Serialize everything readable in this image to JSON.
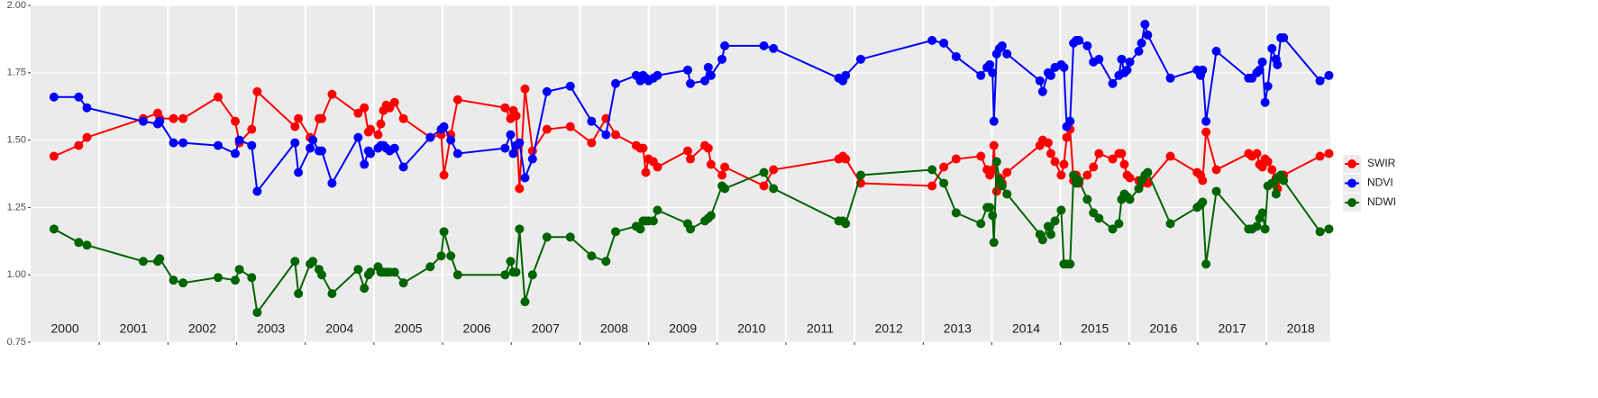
{
  "chart_data": {
    "type": "line",
    "x": [
      2000.34,
      2000.7,
      2000.82,
      2001.64,
      2001.85,
      2001.88,
      2002.08,
      2002.22,
      2002.73,
      2002.98,
      2003.04,
      2003.22,
      2003.3,
      2003.85,
      2003.9,
      2004.07,
      2004.11,
      2004.2,
      2004.24,
      2004.39,
      2004.77,
      2004.86,
      2004.92,
      2004.95,
      2005.06,
      2005.1,
      2005.14,
      2005.18,
      2005.23,
      2005.3,
      2005.43,
      2005.82,
      2005.98,
      2006.02,
      2006.12,
      2006.22,
      2006.91,
      2006.99,
      2007.03,
      2007.07,
      2007.12,
      2007.2,
      2007.31,
      2007.52,
      2007.86,
      2008.17,
      2008.38,
      2008.52,
      2008.82,
      2008.88,
      2008.92,
      2008.96,
      2009.0,
      2009.07,
      2009.13,
      2009.57,
      2009.61,
      2009.82,
      2009.87,
      2009.91,
      2010.07,
      2010.11,
      2010.68,
      2010.82,
      2011.77,
      2011.83,
      2011.87,
      2012.09,
      2013.13,
      2013.3,
      2013.48,
      2013.84,
      2013.93,
      2013.97,
      2014.01,
      2014.03,
      2014.07,
      2014.11,
      2014.15,
      2014.22,
      2014.7,
      2014.74,
      2014.82,
      2014.86,
      2014.92,
      2015.01,
      2015.05,
      2015.09,
      2015.14,
      2015.19,
      2015.23,
      2015.27,
      2015.39,
      2015.48,
      2015.56,
      2015.76,
      2015.85,
      2015.89,
      2015.93,
      2015.97,
      2016.01,
      2016.14,
      2016.18,
      2016.23,
      2016.27,
      2016.6,
      2016.99,
      2017.04,
      2017.07,
      2017.12,
      2017.27,
      2017.74,
      2017.79,
      2017.86,
      2017.9,
      2017.94,
      2017.98,
      2018.02,
      2018.08,
      2018.14,
      2018.16,
      2018.21,
      2018.25,
      2018.78,
      2018.91
    ],
    "series": [
      {
        "name": "SWIR",
        "color": "#ff0000",
        "values": [
          1.44,
          1.48,
          1.51,
          1.58,
          1.6,
          1.58,
          1.58,
          1.58,
          1.66,
          1.57,
          1.49,
          1.54,
          1.68,
          1.55,
          1.58,
          1.51,
          1.5,
          1.58,
          1.58,
          1.67,
          1.6,
          1.62,
          1.53,
          1.54,
          1.52,
          1.56,
          1.61,
          1.63,
          1.62,
          1.64,
          1.58,
          1.51,
          1.52,
          1.37,
          1.52,
          1.65,
          1.62,
          1.58,
          1.61,
          1.59,
          1.32,
          1.69,
          1.46,
          1.54,
          1.55,
          1.49,
          1.58,
          1.52,
          1.48,
          1.47,
          1.47,
          1.38,
          1.43,
          1.42,
          1.4,
          1.46,
          1.43,
          1.48,
          1.47,
          1.41,
          1.37,
          1.4,
          1.33,
          1.39,
          1.43,
          1.44,
          1.43,
          1.34,
          1.33,
          1.4,
          1.43,
          1.44,
          1.39,
          1.37,
          1.39,
          1.48,
          1.31,
          1.36,
          1.34,
          1.38,
          1.48,
          1.5,
          1.49,
          1.45,
          1.42,
          1.37,
          1.41,
          1.51,
          1.54,
          1.35,
          1.37,
          1.34,
          1.37,
          1.4,
          1.45,
          1.43,
          1.45,
          1.45,
          1.41,
          1.37,
          1.36,
          1.35,
          1.34,
          1.35,
          1.34,
          1.44,
          1.38,
          1.37,
          1.35,
          1.53,
          1.39,
          1.45,
          1.44,
          1.45,
          1.41,
          1.4,
          1.43,
          1.42,
          1.39,
          1.36,
          1.32,
          1.37,
          1.37,
          1.44,
          1.45
        ]
      },
      {
        "name": "NDVI",
        "color": "#0000ff",
        "values": [
          1.66,
          1.66,
          1.62,
          1.57,
          1.56,
          1.57,
          1.49,
          1.49,
          1.48,
          1.45,
          1.5,
          1.48,
          1.31,
          1.49,
          1.38,
          1.47,
          1.5,
          1.46,
          1.46,
          1.34,
          1.51,
          1.41,
          1.46,
          1.45,
          1.47,
          1.48,
          1.48,
          1.47,
          1.46,
          1.47,
          1.4,
          1.51,
          1.54,
          1.55,
          1.5,
          1.45,
          1.47,
          1.52,
          1.45,
          1.48,
          1.49,
          1.36,
          1.43,
          1.68,
          1.7,
          1.57,
          1.52,
          1.71,
          1.74,
          1.72,
          1.74,
          1.73,
          1.72,
          1.73,
          1.74,
          1.76,
          1.71,
          1.72,
          1.77,
          1.74,
          1.8,
          1.85,
          1.85,
          1.84,
          1.73,
          1.72,
          1.74,
          1.8,
          1.87,
          1.86,
          1.81,
          1.74,
          1.77,
          1.78,
          1.75,
          1.57,
          1.82,
          1.84,
          1.85,
          1.82,
          1.72,
          1.68,
          1.75,
          1.74,
          1.77,
          1.78,
          1.77,
          1.55,
          1.57,
          1.86,
          1.87,
          1.87,
          1.85,
          1.79,
          1.8,
          1.71,
          1.74,
          1.8,
          1.75,
          1.76,
          1.79,
          1.83,
          1.86,
          1.93,
          1.89,
          1.73,
          1.76,
          1.74,
          1.76,
          1.57,
          1.83,
          1.73,
          1.73,
          1.75,
          1.76,
          1.79,
          1.64,
          1.7,
          1.84,
          1.8,
          1.78,
          1.88,
          1.88,
          1.72,
          1.74
        ]
      },
      {
        "name": "NDWI",
        "color": "#006400",
        "values": [
          1.17,
          1.12,
          1.11,
          1.05,
          1.05,
          1.06,
          0.98,
          0.97,
          0.99,
          0.98,
          1.02,
          0.99,
          0.86,
          1.05,
          0.93,
          1.04,
          1.05,
          1.02,
          1.0,
          0.93,
          1.02,
          0.95,
          1.0,
          1.01,
          1.03,
          1.01,
          1.01,
          1.01,
          1.01,
          1.01,
          0.97,
          1.03,
          1.07,
          1.16,
          1.07,
          1.0,
          1.0,
          1.05,
          1.01,
          1.01,
          1.17,
          0.9,
          1.0,
          1.14,
          1.14,
          1.07,
          1.05,
          1.16,
          1.18,
          1.17,
          1.2,
          1.2,
          1.2,
          1.2,
          1.24,
          1.19,
          1.17,
          1.2,
          1.21,
          1.22,
          1.33,
          1.32,
          1.38,
          1.32,
          1.2,
          1.2,
          1.19,
          1.37,
          1.39,
          1.34,
          1.23,
          1.19,
          1.25,
          1.25,
          1.22,
          1.12,
          1.42,
          1.35,
          1.33,
          1.3,
          1.15,
          1.13,
          1.18,
          1.15,
          1.2,
          1.24,
          1.04,
          1.04,
          1.04,
          1.37,
          1.34,
          1.35,
          1.28,
          1.23,
          1.21,
          1.17,
          1.19,
          1.28,
          1.3,
          1.29,
          1.28,
          1.32,
          1.35,
          1.37,
          1.38,
          1.19,
          1.25,
          1.26,
          1.27,
          1.04,
          1.31,
          1.17,
          1.17,
          1.18,
          1.21,
          1.23,
          1.17,
          1.33,
          1.34,
          1.3,
          1.36,
          1.37,
          1.35,
          1.16,
          1.17
        ]
      }
    ],
    "xlim": [
      2000,
      2018.93
    ],
    "xticks": [
      {
        "value": 2000.5,
        "label": "2000"
      },
      {
        "value": 2001.5,
        "label": "2001"
      },
      {
        "value": 2002.5,
        "label": "2002"
      },
      {
        "value": 2003.5,
        "label": "2003"
      },
      {
        "value": 2004.5,
        "label": "2004"
      },
      {
        "value": 2005.5,
        "label": "2005"
      },
      {
        "value": 2006.5,
        "label": "2006"
      },
      {
        "value": 2007.5,
        "label": "2007"
      },
      {
        "value": 2008.5,
        "label": "2008"
      },
      {
        "value": 2009.5,
        "label": "2009"
      },
      {
        "value": 2010.5,
        "label": "2010"
      },
      {
        "value": 2011.5,
        "label": "2011"
      },
      {
        "value": 2012.5,
        "label": "2012"
      },
      {
        "value": 2013.5,
        "label": "2013"
      },
      {
        "value": 2014.5,
        "label": "2014"
      },
      {
        "value": 2015.5,
        "label": "2015"
      },
      {
        "value": 2016.5,
        "label": "2016"
      },
      {
        "value": 2017.5,
        "label": "2017"
      },
      {
        "value": 2018.5,
        "label": "2018"
      }
    ],
    "xgrid": [
      2001,
      2002,
      2003,
      2004,
      2005,
      2006,
      2007,
      2008,
      2009,
      2010,
      2011,
      2012,
      2013,
      2014,
      2015,
      2016,
      2017,
      2018
    ],
    "ylim": [
      0.75,
      2.0
    ],
    "yticks": [
      {
        "value": 0.75,
        "label": "0.75"
      },
      {
        "value": 1.0,
        "label": "1.00"
      },
      {
        "value": 1.25,
        "label": "1.25"
      },
      {
        "value": 1.5,
        "label": "1.50"
      },
      {
        "value": 1.75,
        "label": "1.75"
      },
      {
        "value": 2.0,
        "label": "2.00"
      }
    ],
    "grid": true,
    "legend": "right"
  }
}
